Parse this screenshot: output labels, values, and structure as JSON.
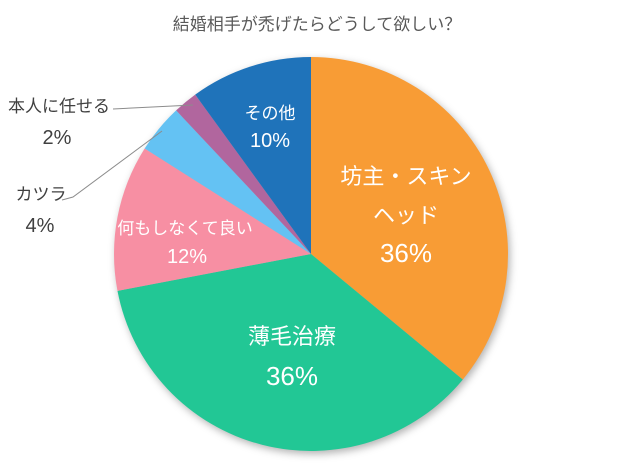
{
  "chart_data": {
    "type": "pie",
    "title": "結婚相手が禿げたらどうして欲しい？",
    "start_angle_deg": 0,
    "direction": "clockwise",
    "legend": "none",
    "background": "#FFFFFF",
    "title_color": "#595959",
    "inside_label_color": "#FFFFFF",
    "outside_label_color": "#404040",
    "leader_line_color": "#8C8C8C",
    "slices": [
      {
        "label": "坊主・スキンヘッド",
        "percent": 36,
        "color": "#F89C35",
        "label_placement": "inside",
        "label_lines": [
          "坊主・スキン",
          "ヘッド",
          "36%"
        ]
      },
      {
        "label": "薄毛治療",
        "percent": 36,
        "color": "#22C795",
        "label_placement": "inside",
        "label_lines": [
          "薄毛治療",
          "36%"
        ]
      },
      {
        "label": "何もしなくて良い",
        "percent": 12,
        "color": "#F78FA3",
        "label_placement": "inside",
        "label_lines": [
          "何もしなくて良い",
          "12%"
        ]
      },
      {
        "label": "カツラ",
        "percent": 4,
        "color": "#64C2F3",
        "label_placement": "outside",
        "label_lines": [
          "カツラ",
          "4%"
        ]
      },
      {
        "label": "本人に任せる",
        "percent": 2,
        "color": "#B1669E",
        "label_placement": "outside",
        "label_lines": [
          "本人に任せる",
          "2%"
        ]
      },
      {
        "label": "その他",
        "percent": 10,
        "color": "#1F73BA",
        "label_placement": "inside",
        "label_lines": [
          "その他",
          "10%"
        ]
      }
    ]
  }
}
